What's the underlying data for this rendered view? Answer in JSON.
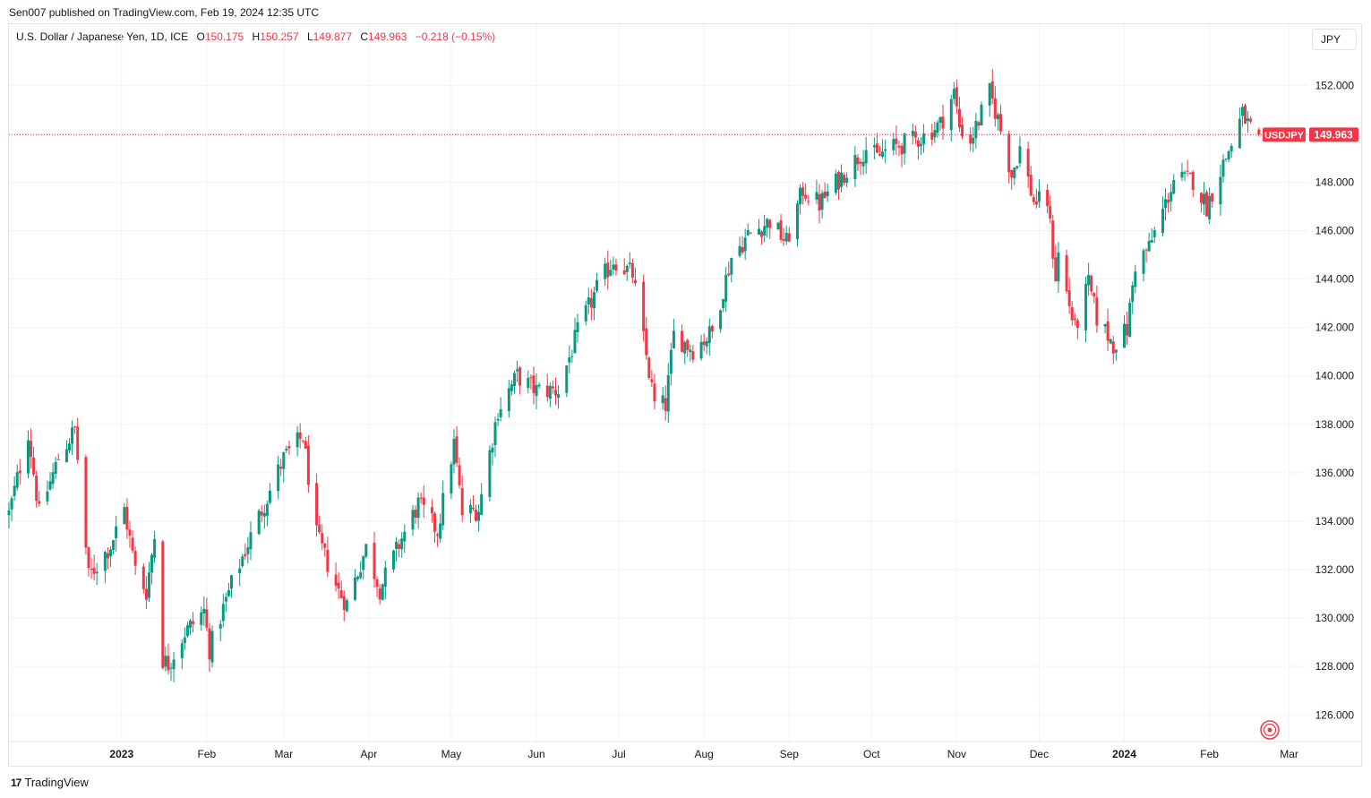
{
  "publisher_line": "Sen007 published on TradingView.com, Feb 19, 2024 12:35 UTC",
  "legend": {
    "symbol": "U.S. Dollar / Japanese Yen, 1D, ICE",
    "o_label": "O",
    "o_value": "150.175",
    "h_label": "H",
    "h_value": "150.257",
    "l_label": "L",
    "l_value": "149.877",
    "c_label": "C",
    "c_value": "149.963",
    "change": "−0.218 (−0.15%)"
  },
  "currency_button": "JPY",
  "footer_brand": "TradingView",
  "footer_logo": "17",
  "colors": {
    "up": "#089981",
    "down": "#f23645",
    "grid": "#f0f3fa",
    "price_line": "#f23645"
  },
  "chart_data": {
    "type": "candlestick",
    "symbol_label": "USDJPY",
    "last_price": 149.963,
    "ylim": [
      124.9,
      153.6
    ],
    "y_ticks": [
      126,
      128,
      130,
      132,
      134,
      136,
      138,
      140,
      142,
      144,
      146,
      148,
      150,
      152
    ],
    "y_tick_labels": [
      "126.000",
      "128.000",
      "130.000",
      "132.000",
      "134.000",
      "136.000",
      "138.000",
      "140.000",
      "142.000",
      "144.000",
      "146.000",
      "148.000",
      "152.000"
    ],
    "x_ticks": [
      {
        "label": "2023",
        "date": "2023-01-01",
        "bold": true
      },
      {
        "label": "Feb",
        "date": "2023-02-01",
        "bold": false
      },
      {
        "label": "Mar",
        "date": "2023-03-01",
        "bold": false
      },
      {
        "label": "Apr",
        "date": "2023-04-01",
        "bold": false
      },
      {
        "label": "May",
        "date": "2023-05-01",
        "bold": false
      },
      {
        "label": "Jun",
        "date": "2023-06-01",
        "bold": false
      },
      {
        "label": "Jul",
        "date": "2023-07-01",
        "bold": false
      },
      {
        "label": "Aug",
        "date": "2023-08-01",
        "bold": false
      },
      {
        "label": "Sep",
        "date": "2023-09-01",
        "bold": false
      },
      {
        "label": "Oct",
        "date": "2023-10-01",
        "bold": false
      },
      {
        "label": "Nov",
        "date": "2023-11-01",
        "bold": false
      },
      {
        "label": "Dec",
        "date": "2023-12-01",
        "bold": false
      },
      {
        "label": "2024",
        "date": "2024-01-01",
        "bold": true
      },
      {
        "label": "Feb",
        "date": "2024-02-01",
        "bold": false
      },
      {
        "label": "Mar",
        "date": "2024-03-01",
        "bold": false
      }
    ],
    "x_range": [
      "2022-11-21",
      "2024-03-07"
    ],
    "key_points": [
      {
        "date": "2022-11-21",
        "close": 134.3
      },
      {
        "date": "2022-11-28",
        "close": 137.7
      },
      {
        "date": "2022-12-02",
        "close": 134.3
      },
      {
        "date": "2022-12-09",
        "close": 136.6
      },
      {
        "date": "2022-12-15",
        "close": 137.8
      },
      {
        "date": "2022-12-20",
        "close": 131.7
      },
      {
        "date": "2022-12-28",
        "close": 133.0
      },
      {
        "date": "2023-01-02",
        "close": 134.5
      },
      {
        "date": "2023-01-06",
        "close": 132.0
      },
      {
        "date": "2023-01-10",
        "close": 131.1
      },
      {
        "date": "2023-01-13",
        "close": 133.4
      },
      {
        "date": "2023-01-16",
        "close": 128.3
      },
      {
        "date": "2023-01-18",
        "close": 128.1
      },
      {
        "date": "2023-01-24",
        "close": 129.4
      },
      {
        "date": "2023-01-31",
        "close": 130.3
      },
      {
        "date": "2023-02-02",
        "close": 128.7
      },
      {
        "date": "2023-02-10",
        "close": 131.4
      },
      {
        "date": "2023-02-20",
        "close": 134.2
      },
      {
        "date": "2023-03-01",
        "close": 136.6
      },
      {
        "date": "2023-03-08",
        "close": 137.5
      },
      {
        "date": "2023-03-13",
        "close": 133.4
      },
      {
        "date": "2023-03-21",
        "close": 131.1
      },
      {
        "date": "2023-03-24",
        "close": 130.6
      },
      {
        "date": "2023-03-31",
        "close": 132.9
      },
      {
        "date": "2023-04-05",
        "close": 131.2
      },
      {
        "date": "2023-04-13",
        "close": 133.3
      },
      {
        "date": "2023-04-19",
        "close": 134.7
      },
      {
        "date": "2023-04-26",
        "close": 133.6
      },
      {
        "date": "2023-05-02",
        "close": 137.2
      },
      {
        "date": "2023-05-05",
        "close": 134.3
      },
      {
        "date": "2023-05-11",
        "close": 134.5
      },
      {
        "date": "2023-05-18",
        "close": 138.6
      },
      {
        "date": "2023-05-25",
        "close": 140.0
      },
      {
        "date": "2023-06-01",
        "close": 139.4
      },
      {
        "date": "2023-06-09",
        "close": 139.4
      },
      {
        "date": "2023-06-16",
        "close": 141.8
      },
      {
        "date": "2023-06-23",
        "close": 143.6
      },
      {
        "date": "2023-06-29",
        "close": 144.8
      },
      {
        "date": "2023-07-06",
        "close": 144.2
      },
      {
        "date": "2023-07-14",
        "close": 138.8
      },
      {
        "date": "2023-07-18",
        "close": 138.8
      },
      {
        "date": "2023-07-21",
        "close": 141.7
      },
      {
        "date": "2023-07-28",
        "close": 141.1
      },
      {
        "date": "2023-08-04",
        "close": 141.8
      },
      {
        "date": "2023-08-11",
        "close": 144.9
      },
      {
        "date": "2023-08-17",
        "close": 145.8
      },
      {
        "date": "2023-08-25",
        "close": 146.4
      },
      {
        "date": "2023-08-31",
        "close": 145.5
      },
      {
        "date": "2023-09-06",
        "close": 147.7
      },
      {
        "date": "2023-09-12",
        "close": 147.1
      },
      {
        "date": "2023-09-21",
        "close": 148.4
      },
      {
        "date": "2023-09-29",
        "close": 149.4
      },
      {
        "date": "2023-10-03",
        "close": 149.0
      },
      {
        "date": "2023-10-06",
        "close": 149.3
      },
      {
        "date": "2023-10-13",
        "close": 149.6
      },
      {
        "date": "2023-10-20",
        "close": 149.9
      },
      {
        "date": "2023-10-26",
        "close": 150.4
      },
      {
        "date": "2023-10-31",
        "close": 151.7
      },
      {
        "date": "2023-11-02",
        "close": 150.3
      },
      {
        "date": "2023-11-06",
        "close": 149.7
      },
      {
        "date": "2023-11-13",
        "close": 151.7
      },
      {
        "date": "2023-11-16",
        "close": 150.6
      },
      {
        "date": "2023-11-21",
        "close": 148.3
      },
      {
        "date": "2023-11-24",
        "close": 149.4
      },
      {
        "date": "2023-11-29",
        "close": 147.2
      },
      {
        "date": "2023-12-04",
        "close": 147.2
      },
      {
        "date": "2023-12-07",
        "close": 144.1
      },
      {
        "date": "2023-12-08",
        "close": 145.0
      },
      {
        "date": "2023-12-14",
        "close": 141.9
      },
      {
        "date": "2023-12-19",
        "close": 143.8
      },
      {
        "date": "2023-12-22",
        "close": 142.4
      },
      {
        "date": "2023-12-28",
        "close": 141.3
      },
      {
        "date": "2024-01-02",
        "close": 141.9
      },
      {
        "date": "2024-01-05",
        "close": 144.6
      },
      {
        "date": "2024-01-10",
        "close": 145.3
      },
      {
        "date": "2024-01-16",
        "close": 147.1
      },
      {
        "date": "2024-01-19",
        "close": 148.1
      },
      {
        "date": "2024-01-26",
        "close": 148.1
      },
      {
        "date": "2024-01-31",
        "close": 147.0
      },
      {
        "date": "2024-02-05",
        "close": 148.5
      },
      {
        "date": "2024-02-08",
        "close": 149.3
      },
      {
        "date": "2024-02-13",
        "close": 150.8
      },
      {
        "date": "2024-02-16",
        "close": 150.2
      },
      {
        "date": "2024-02-19",
        "close": 149.963
      }
    ]
  }
}
